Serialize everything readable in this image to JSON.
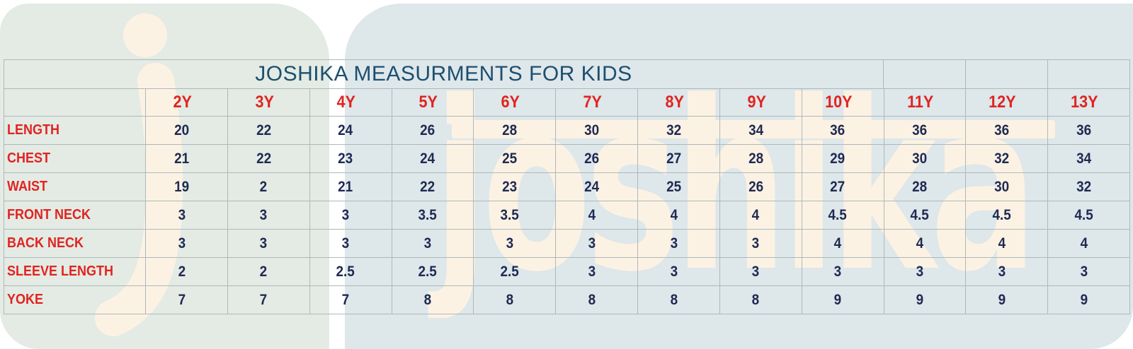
{
  "brand": {
    "watermark_letter": "j",
    "watermark_word": "joshika"
  },
  "chart_data": {
    "type": "table",
    "title": "JOSHIKA MEASURMENTS FOR KIDS",
    "columns": [
      "2Y",
      "3Y",
      "4Y",
      "5Y",
      "6Y",
      "7Y",
      "8Y",
      "9Y",
      "10Y",
      "11Y",
      "12Y",
      "13Y"
    ],
    "rows": [
      {
        "label": "LENGTH",
        "values": [
          "20",
          "22",
          "24",
          "26",
          "28",
          "30",
          "32",
          "34",
          "36",
          "36",
          "36",
          "36"
        ]
      },
      {
        "label": "CHEST",
        "values": [
          "21",
          "22",
          "23",
          "24",
          "25",
          "26",
          "27",
          "28",
          "29",
          "30",
          "32",
          "34"
        ]
      },
      {
        "label": "WAIST",
        "values": [
          "19",
          "2",
          "21",
          "22",
          "23",
          "24",
          "25",
          "26",
          "27",
          "28",
          "30",
          "32"
        ]
      },
      {
        "label": "FRONT NECK",
        "values": [
          "3",
          "3",
          "3",
          "3.5",
          "3.5",
          "4",
          "4",
          "4",
          "4.5",
          "4.5",
          "4.5",
          "4.5"
        ]
      },
      {
        "label": "BACK NECK",
        "values": [
          "3",
          "3",
          "3",
          "3",
          "3",
          "3",
          "3",
          "3",
          "4",
          "4",
          "4",
          "4"
        ]
      },
      {
        "label": "SLEEVE LENGTH",
        "values": [
          "2",
          "2",
          "2.5",
          "2.5",
          "2.5",
          "3",
          "3",
          "3",
          "3",
          "3",
          "3",
          "3"
        ]
      },
      {
        "label": "YOKE",
        "values": [
          "7",
          "7",
          "7",
          "8",
          "8",
          "8",
          "8",
          "8",
          "9",
          "9",
          "9",
          "9"
        ]
      }
    ],
    "layout": {
      "grid": true,
      "title_row_merged_through": "10Y",
      "units_shown": false
    }
  },
  "colors": {
    "card_left": "#e3ebe4",
    "card_right": "#dee7ea",
    "watermark": "#fcf2e3",
    "heading": "#1d4f6f",
    "accent_red": "#e02421",
    "value_navy": "#1f2a52",
    "gridline": "#aeb8ba"
  }
}
